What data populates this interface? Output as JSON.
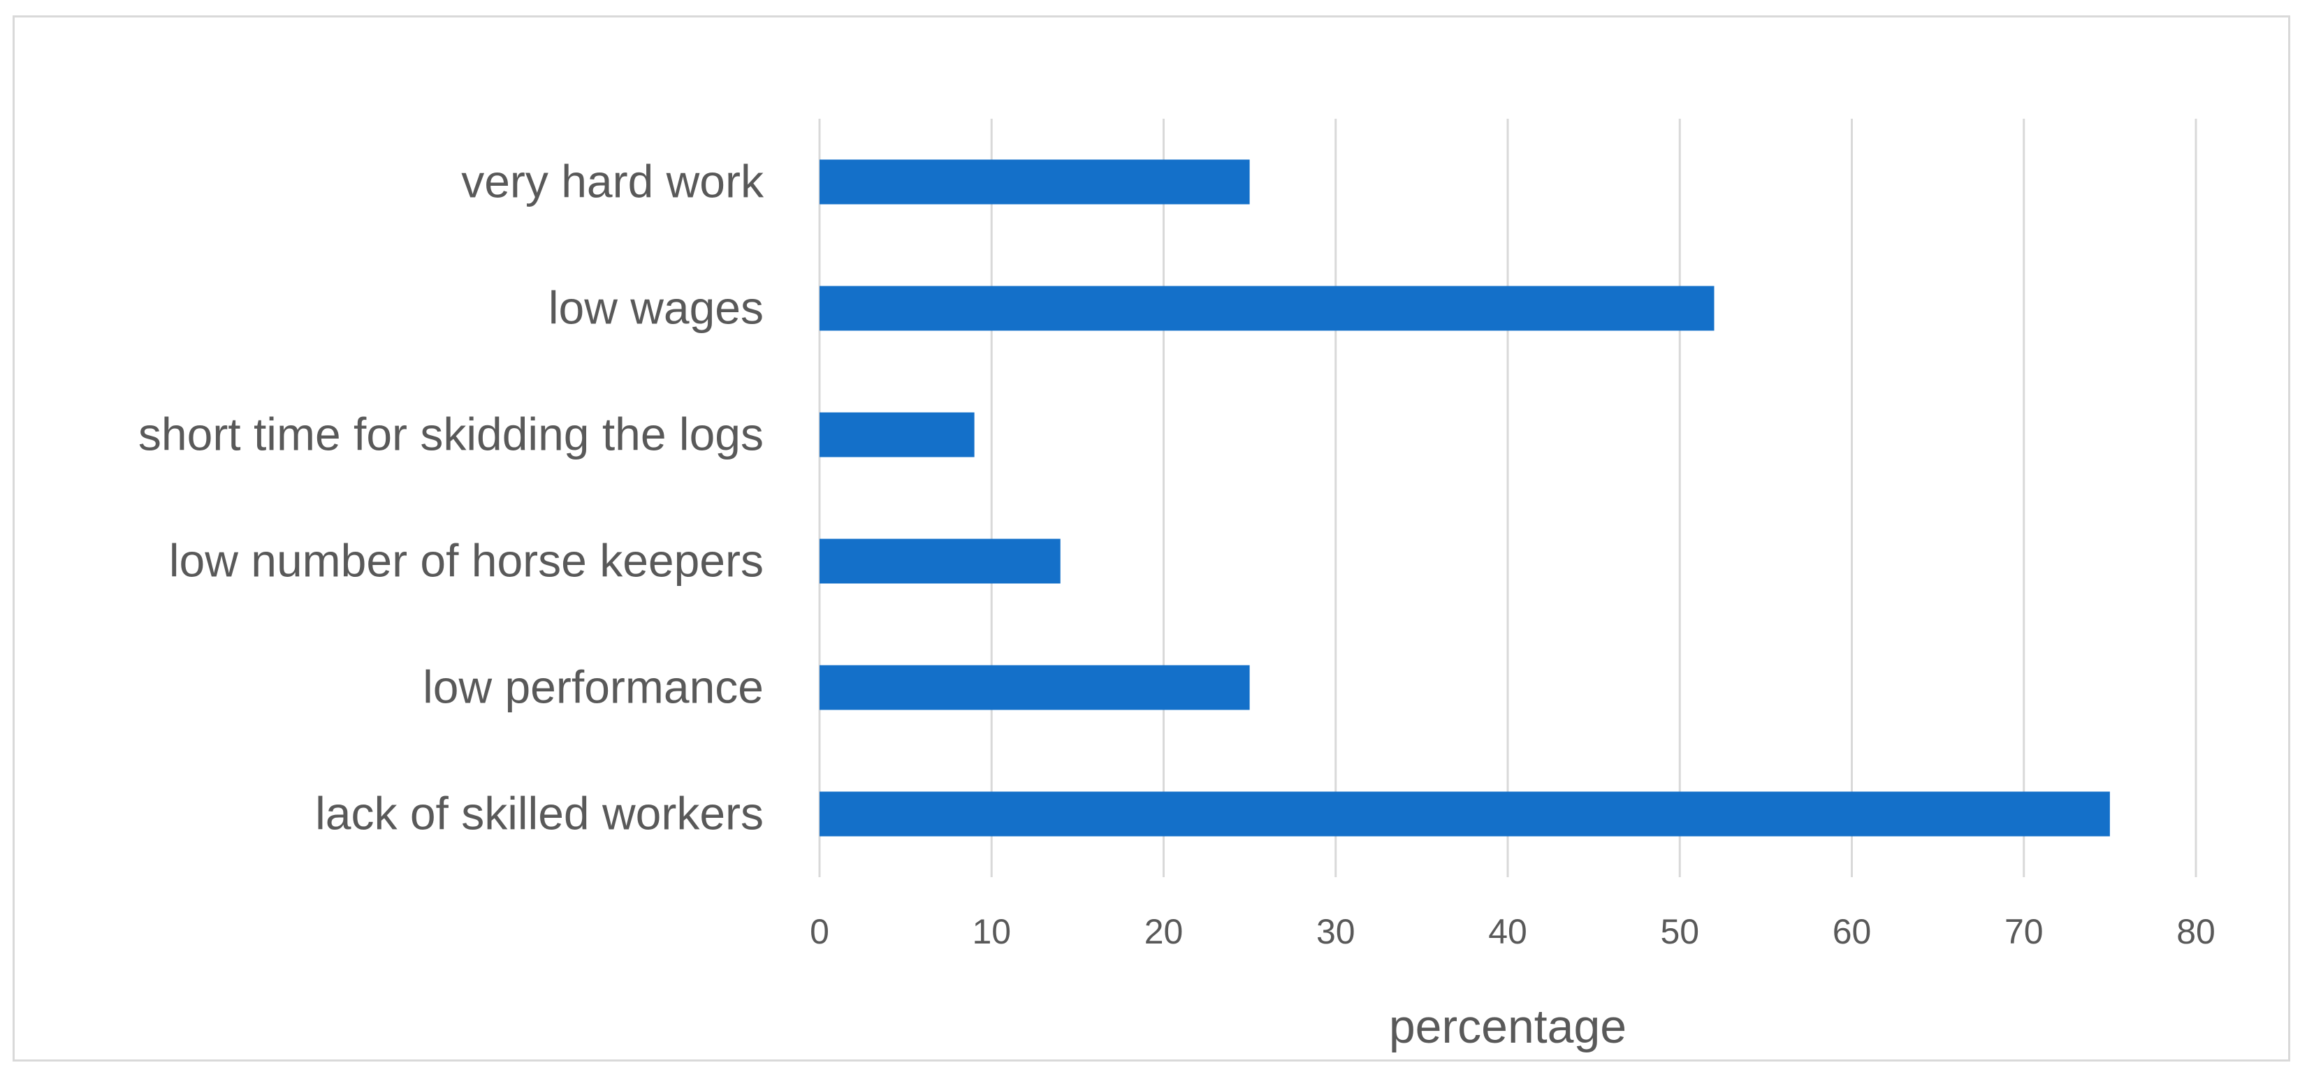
{
  "chart_data": {
    "type": "bar",
    "orientation": "horizontal",
    "title": "",
    "xlabel": "percentage",
    "ylabel": "",
    "categories": [
      "very hard work",
      "low wages",
      "short time for skidding the logs",
      "low number of horse keepers",
      "low performance",
      "lack of skilled workers"
    ],
    "values": [
      25,
      52,
      9,
      14,
      25,
      75
    ],
    "xlim": [
      0,
      80
    ],
    "xticks": [
      0,
      10,
      20,
      30,
      40,
      50,
      60,
      70,
      80
    ],
    "grid": "vertical",
    "legend": "none",
    "bar_color": "#1470c9"
  }
}
